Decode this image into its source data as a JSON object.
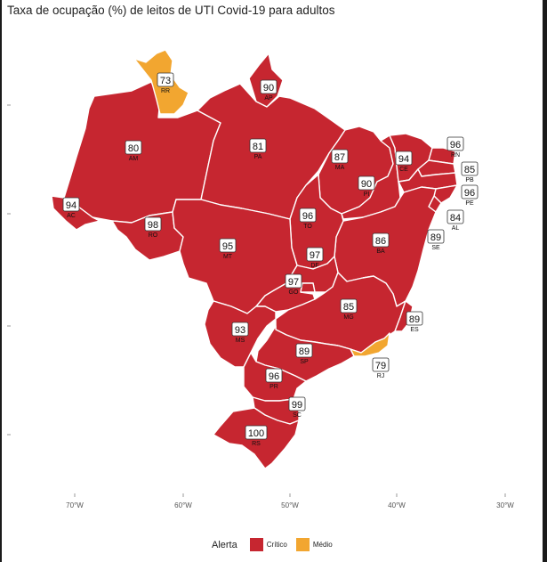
{
  "title": "Taxa de ocupação (%) de leitos de UTI Covid-19 para adultos",
  "colors": {
    "critico": "#c62630",
    "medio": "#f2a630"
  },
  "legend": {
    "title": "Alerta",
    "items": [
      {
        "label": "Crítico",
        "color": "#c62630"
      },
      {
        "label": "Médio",
        "color": "#f2a630"
      }
    ]
  },
  "axis": {
    "x_ticks": [
      "70°W",
      "60°W",
      "50°W",
      "40°W",
      "30°W"
    ]
  },
  "states": [
    {
      "abbr": "RR",
      "value": 73,
      "alert": "medio"
    },
    {
      "abbr": "AP",
      "value": 90,
      "alert": "critico"
    },
    {
      "abbr": "AM",
      "value": 80,
      "alert": "critico"
    },
    {
      "abbr": "PA",
      "value": 81,
      "alert": "critico"
    },
    {
      "abbr": "MA",
      "value": 87,
      "alert": "critico"
    },
    {
      "abbr": "CE",
      "value": 94,
      "alert": "critico"
    },
    {
      "abbr": "RN",
      "value": 96,
      "alert": "critico"
    },
    {
      "abbr": "PB",
      "value": 85,
      "alert": "critico"
    },
    {
      "abbr": "PE",
      "value": 96,
      "alert": "critico"
    },
    {
      "abbr": "AL",
      "value": 84,
      "alert": "critico"
    },
    {
      "abbr": "SE",
      "value": 89,
      "alert": "critico"
    },
    {
      "abbr": "PI",
      "value": 90,
      "alert": "critico"
    },
    {
      "abbr": "AC",
      "value": 94,
      "alert": "critico"
    },
    {
      "abbr": "RO",
      "value": 98,
      "alert": "critico"
    },
    {
      "abbr": "TO",
      "value": 96,
      "alert": "critico"
    },
    {
      "abbr": "BA",
      "value": 86,
      "alert": "critico"
    },
    {
      "abbr": "MT",
      "value": 95,
      "alert": "critico"
    },
    {
      "abbr": "DF",
      "value": 97,
      "alert": "critico"
    },
    {
      "abbr": "GO",
      "value": 97,
      "alert": "critico"
    },
    {
      "abbr": "MG",
      "value": 85,
      "alert": "critico"
    },
    {
      "abbr": "ES",
      "value": 89,
      "alert": "critico"
    },
    {
      "abbr": "MS",
      "value": 93,
      "alert": "critico"
    },
    {
      "abbr": "SP",
      "value": 89,
      "alert": "critico"
    },
    {
      "abbr": "RJ",
      "value": 79,
      "alert": "medio"
    },
    {
      "abbr": "PR",
      "value": 96,
      "alert": "critico"
    },
    {
      "abbr": "SC",
      "value": 99,
      "alert": "critico"
    },
    {
      "abbr": "RS",
      "value": 100,
      "alert": "critico"
    }
  ]
}
